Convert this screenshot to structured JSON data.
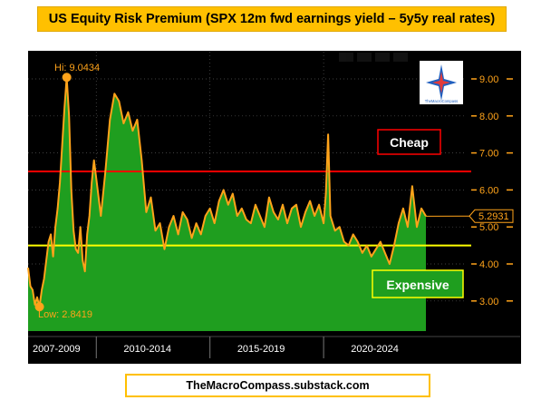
{
  "title": "US Equity Risk Premium (SPX 12m fwd earnings yield – 5y5y real rates)",
  "footer": "TheMacroCompass.substack.com",
  "logo_text": "TheMacroCompass",
  "colors": {
    "background": "#000000",
    "line": "#ffa31a",
    "fill": "#1f9e1f",
    "cheap_line": "#ff0000",
    "expensive_line": "#ffff00",
    "title_bg": "#ffc000",
    "axis_text": "#ffa31a"
  },
  "chart_data": {
    "type": "area",
    "ylim": [
      2.3,
      9.4
    ],
    "y_ticks": [
      3,
      4,
      5,
      6,
      7,
      8,
      9
    ],
    "y_tick_labels": [
      "3.00",
      "4.00",
      "5.00",
      "6.00",
      "7.00",
      "8.00",
      "9.00"
    ],
    "x_periods": [
      "2007-2009",
      "2010-2014",
      "2015-2019",
      "2020-2024"
    ],
    "thresholds": [
      {
        "name": "Cheap",
        "value": 6.5
      },
      {
        "name": "Expensive",
        "value": 4.5
      }
    ],
    "annotations": {
      "high": "Hi: 9.0434",
      "low": "Low: 2.8419",
      "last": "5.2931"
    },
    "high_value": 9.0434,
    "low_value": 2.8419,
    "last_value": 5.2931,
    "x": [
      2007.0,
      2007.1,
      2007.2,
      2007.3,
      2007.4,
      2007.5,
      2007.6,
      2007.7,
      2007.8,
      2007.9,
      2008.0,
      2008.1,
      2008.2,
      2008.3,
      2008.4,
      2008.5,
      2008.6,
      2008.7,
      2008.8,
      2008.9,
      2009.0,
      2009.1,
      2009.2,
      2009.3,
      2009.4,
      2009.5,
      2009.6,
      2009.7,
      2009.8,
      2009.9,
      2010.0,
      2010.2,
      2010.4,
      2010.6,
      2010.8,
      2011.0,
      2011.2,
      2011.4,
      2011.6,
      2011.8,
      2012.0,
      2012.2,
      2012.4,
      2012.6,
      2012.8,
      2013.0,
      2013.2,
      2013.4,
      2013.6,
      2013.8,
      2014.0,
      2014.2,
      2014.4,
      2014.6,
      2014.8,
      2015.0,
      2015.2,
      2015.4,
      2015.6,
      2015.8,
      2016.0,
      2016.2,
      2016.4,
      2016.6,
      2016.8,
      2017.0,
      2017.2,
      2017.4,
      2017.6,
      2017.8,
      2018.0,
      2018.2,
      2018.4,
      2018.6,
      2018.8,
      2019.0,
      2019.2,
      2019.4,
      2019.6,
      2019.8,
      2020.0,
      2020.1,
      2020.2,
      2020.3,
      2020.5,
      2020.7,
      2020.9,
      2021.1,
      2021.3,
      2021.5,
      2021.7,
      2021.9,
      2022.1,
      2022.3,
      2022.5,
      2022.7,
      2022.9,
      2023.1,
      2023.3,
      2023.5,
      2023.7,
      2023.9,
      2024.1,
      2024.3,
      2024.5
    ],
    "y": [
      3.9,
      3.4,
      3.3,
      2.9,
      3.1,
      2.84,
      3.3,
      3.6,
      4.1,
      4.6,
      4.8,
      4.2,
      5.0,
      5.5,
      6.2,
      7.2,
      8.2,
      9.04,
      8.0,
      6.0,
      4.9,
      4.4,
      4.3,
      5.0,
      4.1,
      3.8,
      4.8,
      5.3,
      6.2,
      6.8,
      6.3,
      5.3,
      6.5,
      7.9,
      8.6,
      8.4,
      7.8,
      8.1,
      7.6,
      7.9,
      6.8,
      5.4,
      5.8,
      4.9,
      5.1,
      4.4,
      5.0,
      5.3,
      4.8,
      5.4,
      5.2,
      4.7,
      5.1,
      4.8,
      5.3,
      5.5,
      5.1,
      5.7,
      6.0,
      5.6,
      5.9,
      5.3,
      5.5,
      5.2,
      5.1,
      5.6,
      5.3,
      5.0,
      5.8,
      5.4,
      5.2,
      5.6,
      5.1,
      5.5,
      5.6,
      5.0,
      5.4,
      5.7,
      5.3,
      5.6,
      5.1,
      5.9,
      7.5,
      5.3,
      4.9,
      5.0,
      4.6,
      4.5,
      4.8,
      4.6,
      4.3,
      4.5,
      4.2,
      4.4,
      4.6,
      4.3,
      4.0,
      4.5,
      5.1,
      5.5,
      5.0,
      6.1,
      5.0,
      5.5,
      5.29
    ]
  }
}
